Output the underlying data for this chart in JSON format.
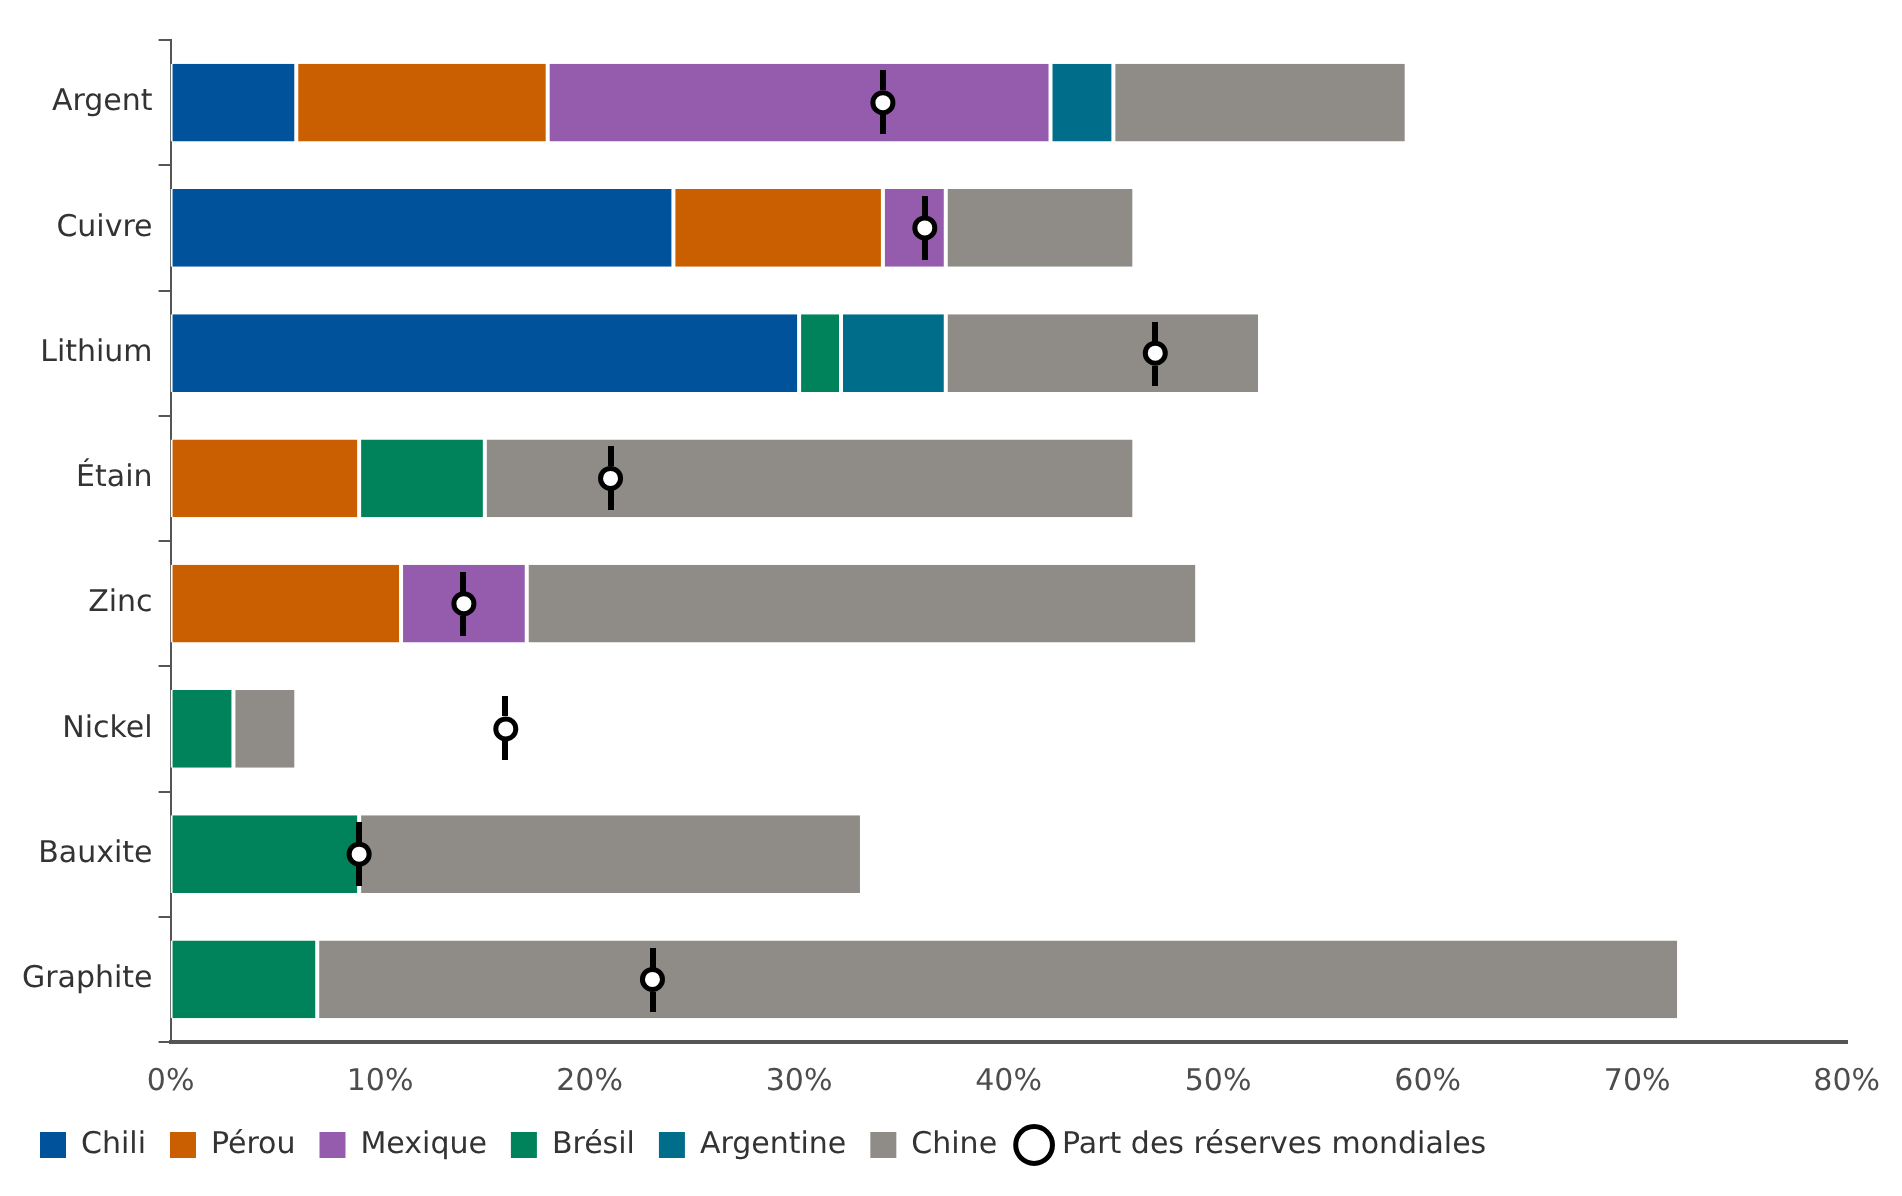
{
  "chart_data": {
    "type": "bar",
    "orientation": "horizontal",
    "stacked": true,
    "categories": [
      "Argent",
      "Cuivre",
      "Lithium",
      "Étain",
      "Zinc",
      "Nickel",
      "Bauxite",
      "Graphite"
    ],
    "series": [
      {
        "name": "Chili",
        "color": "#00529b",
        "values": [
          6,
          24,
          30,
          null,
          null,
          null,
          null,
          null
        ]
      },
      {
        "name": "Pérou",
        "color": "#c95f00",
        "values": [
          12,
          10,
          null,
          9,
          11,
          null,
          null,
          null
        ]
      },
      {
        "name": "Mexique",
        "color": "#955bad",
        "values": [
          24,
          3,
          null,
          null,
          6,
          null,
          null,
          null
        ]
      },
      {
        "name": "Brésil",
        "color": "#00825a",
        "values": [
          null,
          null,
          2,
          6,
          null,
          3,
          9,
          7
        ]
      },
      {
        "name": "Argentine",
        "color": "#006d8a",
        "values": [
          3,
          null,
          5,
          null,
          null,
          null,
          null,
          null
        ]
      },
      {
        "name": "Chine",
        "color": "#8f8b86",
        "values": [
          14,
          9,
          15,
          31,
          32,
          3,
          24,
          65
        ]
      },
      {
        "name": "Part des réserves mondiales",
        "type": "scatter",
        "marker": "circle",
        "color": "#000000",
        "values": [
          34,
          36,
          47,
          21,
          14,
          16,
          9,
          23
        ]
      }
    ],
    "xlim": [
      0,
      80
    ],
    "xticks": [
      {
        "value": 0,
        "label": "0%"
      },
      {
        "value": 10,
        "label": "10%"
      },
      {
        "value": 20,
        "label": "20%"
      },
      {
        "value": 30,
        "label": "30%"
      },
      {
        "value": 40,
        "label": "40%"
      },
      {
        "value": 50,
        "label": "50%"
      },
      {
        "value": 60,
        "label": "60%"
      },
      {
        "value": 70,
        "label": "70%"
      },
      {
        "value": 80,
        "label": "80%"
      }
    ],
    "grid": false,
    "legend": "bottom"
  }
}
